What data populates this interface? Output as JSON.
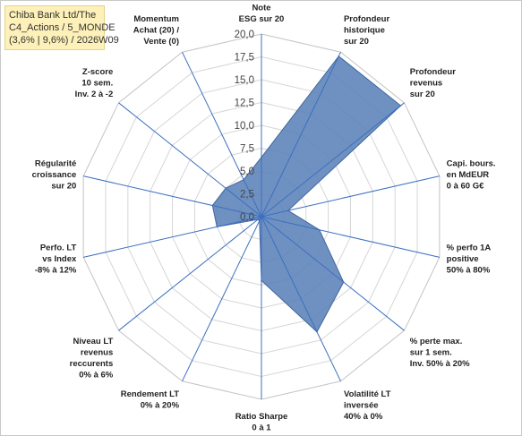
{
  "title_lines": [
    "Chiba Bank Ltd/The",
    "C4_Actions / 5_MONDE",
    "(3,6% | 9,6%) / 2026W09"
  ],
  "colors": {
    "fill": "#5b82b8",
    "stroke": "#3f679e",
    "spoke": "#3c6fc0",
    "ring": "#d6d6d6",
    "title_bg": "#fdf0b8"
  },
  "chart_data": {
    "type": "radar",
    "scale": {
      "min": 0,
      "max": 20,
      "step": 2.5
    },
    "tick_labels": [
      "0,0",
      "2,5",
      "5,0",
      "7,5",
      "10,0",
      "12,5",
      "15,0",
      "17,5",
      "20,0"
    ],
    "axes": [
      {
        "label": [
          "Note",
          "ESG sur 20"
        ],
        "value": 6.5
      },
      {
        "label": [
          "Profondeur",
          "historique",
          "sur 20"
        ],
        "value": 19.5
      },
      {
        "label": [
          "Profondeur",
          "revenus",
          "sur 20"
        ],
        "value": 19.5
      },
      {
        "label": [
          "Capi. bours.",
          "en MdEUR",
          "0 à 60 G€"
        ],
        "value": 3.0
      },
      {
        "label": [
          "% perfo 1A",
          "positive",
          "50% à 80%"
        ],
        "value": 6.5
      },
      {
        "label": [
          "% perte max.",
          "sur 1 sem.",
          "Inv. 50% à 20%"
        ],
        "value": 11.5
      },
      {
        "label": [
          "Volatilité LT",
          "inversée",
          "40% à 0%"
        ],
        "value": 14.0
      },
      {
        "label": [
          "Ratio Sharpe",
          "0 à 1"
        ],
        "value": 7.0
      },
      {
        "label": [
          "Rendement LT",
          "0% à 20%"
        ],
        "value": 0.5
      },
      {
        "label": [
          "Niveau LT",
          "revenus",
          "reccurents",
          "0% à 6%"
        ],
        "value": 0.5
      },
      {
        "label": [
          "Perfo. LT",
          "vs Index",
          "-8% à 12%"
        ],
        "value": 5.0
      },
      {
        "label": [
          "Régularité",
          "croissance",
          "sur 20"
        ],
        "value": 5.5
      },
      {
        "label": [
          "Z-score",
          "10 sem.",
          "Inv. 2 à -2"
        ],
        "value": 5.0
      },
      {
        "label": [
          "Momentum",
          "Achat (20) /",
          "Vente (0)"
        ],
        "value": 4.5
      }
    ]
  }
}
